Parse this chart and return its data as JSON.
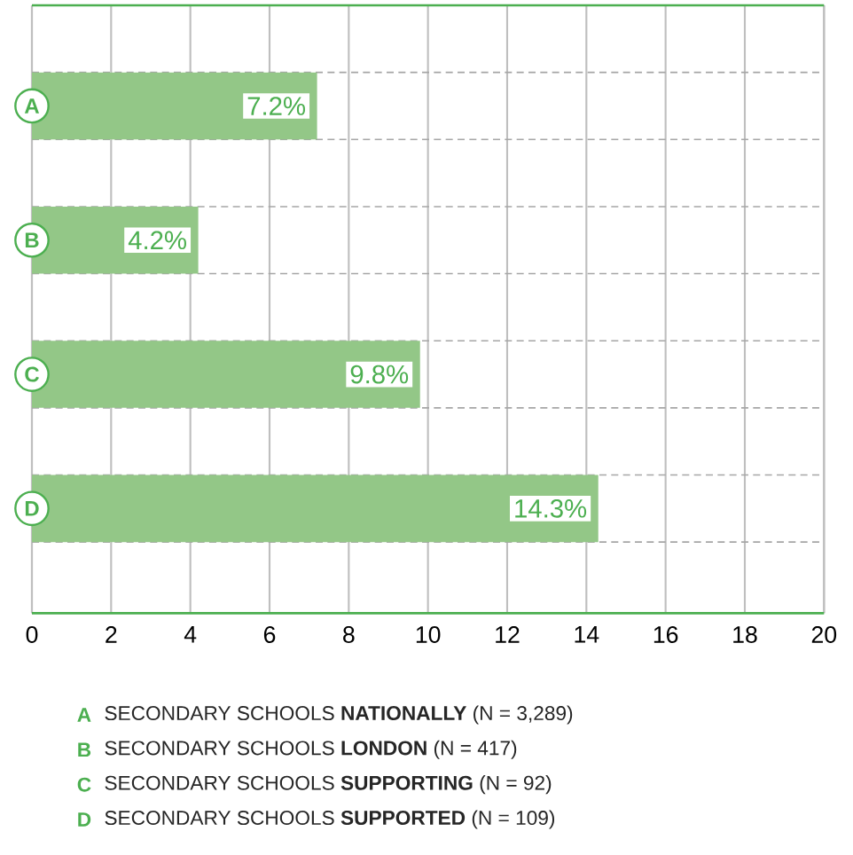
{
  "chart_data": {
    "type": "bar",
    "orientation": "horizontal",
    "categories": [
      "A",
      "B",
      "C",
      "D"
    ],
    "values": [
      7.2,
      4.2,
      9.8,
      14.3
    ],
    "value_labels": [
      "7.2%",
      "4.2%",
      "9.8%",
      "14.3%"
    ],
    "color": "#93c787",
    "xlim": [
      0,
      20
    ],
    "xticks": [
      0,
      2,
      4,
      6,
      8,
      10,
      12,
      14,
      16,
      18,
      20
    ],
    "grid": true,
    "annotations": [
      "SECONDARY SCHOOLS **NATIONALLY** (N = 3,289)",
      "SECONDARY SCHOOLS **LONDON** (N = 417)",
      "SECONDARY SCHOOLS **SUPPORTING** (N = 92)",
      "SECONDARY SCHOOLS **SUPPORTED** (N = 109)"
    ]
  }
}
